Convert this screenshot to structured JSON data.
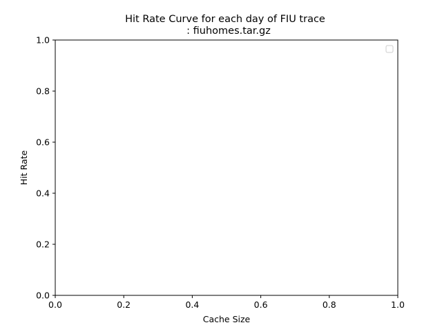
{
  "chart_data": {
    "type": "line",
    "title": "Hit Rate Curve for each day of FIU trace\n: fiuhomes.tar.gz",
    "title_lines": [
      "Hit Rate Curve for each day of FIU trace",
      ": fiuhomes.tar.gz"
    ],
    "xlabel": "Cache Size",
    "ylabel": "Hit Rate",
    "xlim": [
      0.0,
      1.0
    ],
    "ylim": [
      0.0,
      1.0
    ],
    "x_ticks": [
      "0.0",
      "0.2",
      "0.4",
      "0.6",
      "0.8",
      "1.0"
    ],
    "y_ticks": [
      "0.0",
      "0.2",
      "0.4",
      "0.6",
      "0.8",
      "1.0"
    ],
    "grid": false,
    "legend_position": "top-right",
    "legend_entries": [],
    "series": []
  }
}
